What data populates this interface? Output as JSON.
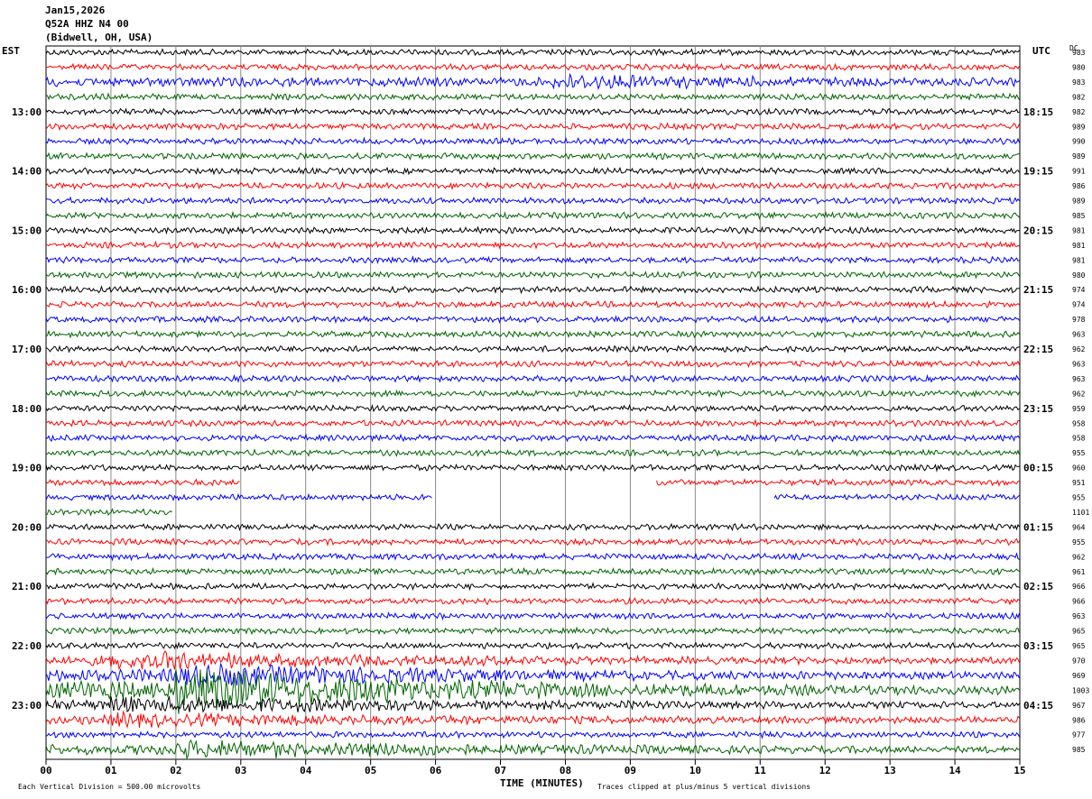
{
  "header": {
    "date": "Jan15,2026",
    "station": "Q52A HHZ N4 00",
    "location": "(Bidwell, OH, USA)"
  },
  "axes": {
    "left_tz": "EST",
    "right_tz": "UTC",
    "dc_label": "DC",
    "xlabel": "TIME (MINUTES)",
    "footer_left": "Each Vertical Division =  500.00 microvolts",
    "footer_right": "Traces clipped at plus/minus 5 vertical divisions"
  },
  "chart_data": {
    "type": "line",
    "xlim": [
      0,
      15
    ],
    "x_tick_labels": [
      "00",
      "01",
      "02",
      "03",
      "04",
      "05",
      "06",
      "07",
      "08",
      "09",
      "10",
      "11",
      "12",
      "13",
      "14",
      "15"
    ],
    "left_time_labels": [
      {
        "row": 4,
        "label": "13:00"
      },
      {
        "row": 8,
        "label": "14:00"
      },
      {
        "row": 12,
        "label": "15:00"
      },
      {
        "row": 16,
        "label": "16:00"
      },
      {
        "row": 20,
        "label": "17:00"
      },
      {
        "row": 24,
        "label": "18:00"
      },
      {
        "row": 28,
        "label": "19:00"
      },
      {
        "row": 32,
        "label": "20:00"
      },
      {
        "row": 36,
        "label": "21:00"
      },
      {
        "row": 40,
        "label": "22:00"
      },
      {
        "row": 44,
        "label": "23:00"
      }
    ],
    "right_time_labels": [
      {
        "row": 4,
        "label": "18:15"
      },
      {
        "row": 8,
        "label": "19:15"
      },
      {
        "row": 12,
        "label": "20:15"
      },
      {
        "row": 16,
        "label": "21:15"
      },
      {
        "row": 20,
        "label": "22:15"
      },
      {
        "row": 24,
        "label": "23:15"
      },
      {
        "row": 28,
        "label": "00:15"
      },
      {
        "row": 32,
        "label": "01:15"
      },
      {
        "row": 36,
        "label": "02:15"
      },
      {
        "row": 40,
        "label": "03:15"
      },
      {
        "row": 44,
        "label": "04:15"
      }
    ],
    "dc_values": [
      "983",
      "980",
      "983",
      "982",
      "982",
      "989",
      "990",
      "989",
      "991",
      "986",
      "989",
      "985",
      "981",
      "981",
      "981",
      "980",
      "974",
      "974",
      "978",
      "963",
      "962",
      "963",
      "963",
      "962",
      "959",
      "958",
      "958",
      "955",
      "960",
      "951",
      "955",
      "1101",
      "964",
      "955",
      "962",
      "961",
      "966",
      "966",
      "963",
      "965",
      "965",
      "970",
      "969",
      "1003",
      "967",
      "986",
      "977",
      "985"
    ],
    "trace_colors": [
      "#000000",
      "#ff0000",
      "#0000ff",
      "#006400"
    ],
    "trace_gaps": [
      {
        "row": 29,
        "from": 3.0,
        "to": 9.4
      },
      {
        "row": 30,
        "from": 5.95,
        "to": 11.2
      },
      {
        "row": 31,
        "from": 1.95,
        "to": 15.0
      }
    ],
    "amplitude_profile": [
      {
        "row": 2,
        "x": 9.3,
        "amp": 2.0
      },
      {
        "row": 41,
        "x": 2.5,
        "amp": 3.0
      },
      {
        "row": 42,
        "x": 3.5,
        "amp": 4.0
      },
      {
        "row": 43,
        "x": 3.5,
        "amp": 8.0
      },
      {
        "row": 44,
        "x": 2.5,
        "amp": 3.0
      },
      {
        "row": 45,
        "x": 2.5,
        "amp": 2.0
      },
      {
        "row": 47,
        "x": 3.5,
        "amp": 3.0
      }
    ]
  }
}
